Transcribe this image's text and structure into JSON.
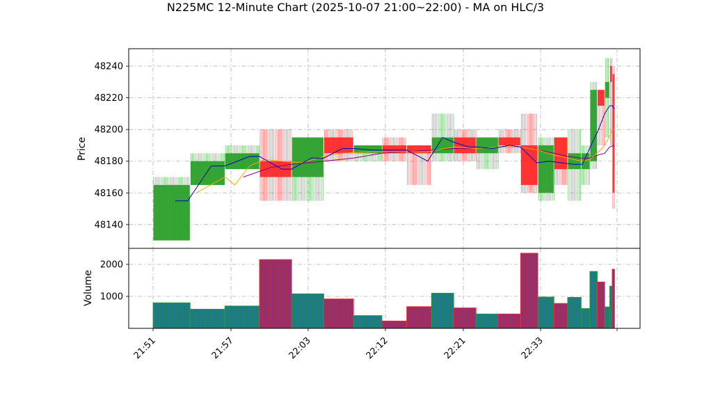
{
  "chart_data": {
    "type": "ohlc-volume",
    "title": "N225MC 12-Minute Chart (2025-10-07 21:00~22:00) - MA on HLC/3",
    "price_axis": {
      "label": "Price",
      "ylim": [
        48125,
        48251
      ],
      "ticks": [
        48140,
        48160,
        48180,
        48200,
        48220,
        48240
      ]
    },
    "volume_axis": {
      "label": "Volume",
      "ylim": [
        0,
        2500
      ],
      "ticks": [
        1000,
        2000
      ]
    },
    "x_tick_labels": [
      "21:51",
      "21:57",
      "22:03",
      "22:12",
      "22:21",
      "22:33"
    ],
    "x_domain": [
      0,
      37.5
    ],
    "grid": true,
    "colors": {
      "up": "#2ca02c",
      "down": "#ff2a2a",
      "ma_fast": "#0000cc",
      "ma_mid": "#ffa500",
      "ma_slow": "#800080",
      "vol_up": "#1f77b4",
      "vol_down": "#8c2d8c"
    },
    "candles": [
      {
        "t0": 0,
        "t1": 3,
        "open": 48130,
        "close": 48165,
        "high": 48170,
        "low": 48130
      },
      {
        "t0": 3,
        "t1": 5.8,
        "open": 48165,
        "close": 48180,
        "high": 48185,
        "low": 48165
      },
      {
        "t0": 5.8,
        "t1": 8.6,
        "open": 48175,
        "close": 48185,
        "high": 48190,
        "low": 48175
      },
      {
        "t0": 8.6,
        "t1": 11.2,
        "open": 48180,
        "close": 48170,
        "high": 48200,
        "low": 48155
      },
      {
        "t0": 11.2,
        "t1": 13.8,
        "open": 48170,
        "close": 48195,
        "high": 48195,
        "low": 48155
      },
      {
        "t0": 13.8,
        "t1": 16.2,
        "open": 48195,
        "close": 48185,
        "high": 48200,
        "low": 48180
      },
      {
        "t0": 16.2,
        "t1": 18.5,
        "open": 48185,
        "close": 48190,
        "high": 48190,
        "low": 48180
      },
      {
        "t0": 18.5,
        "t1": 20.5,
        "open": 48190,
        "close": 48185,
        "high": 48195,
        "low": 48180
      },
      {
        "t0": 20.5,
        "t1": 22.5,
        "open": 48190,
        "close": 48185,
        "high": 48190,
        "low": 48165
      },
      {
        "t0": 22.5,
        "t1": 24.3,
        "open": 48185,
        "close": 48195,
        "high": 48210,
        "low": 48180
      },
      {
        "t0": 24.3,
        "t1": 26.1,
        "open": 48195,
        "close": 48185,
        "high": 48200,
        "low": 48180
      },
      {
        "t0": 26.1,
        "t1": 27.9,
        "open": 48185,
        "close": 48195,
        "high": 48195,
        "low": 48175
      },
      {
        "t0": 27.9,
        "t1": 29.7,
        "open": 48195,
        "close": 48190,
        "high": 48200,
        "low": 48185
      },
      {
        "t0": 29.7,
        "t1": 31.1,
        "open": 48190,
        "close": 48165,
        "high": 48210,
        "low": 48160
      },
      {
        "t0": 31.1,
        "t1": 32.4,
        "open": 48160,
        "close": 48190,
        "high": 48195,
        "low": 48155
      },
      {
        "t0": 32.4,
        "t1": 33.5,
        "open": 48195,
        "close": 48175,
        "high": 48195,
        "low": 48165
      },
      {
        "t0": 33.5,
        "t1": 34.6,
        "open": 48175,
        "close": 48185,
        "high": 48200,
        "low": 48155
      },
      {
        "t0": 34.6,
        "t1": 35.3,
        "open": 48175,
        "close": 48185,
        "high": 48190,
        "low": 48165
      },
      {
        "t0": 35.3,
        "t1": 35.9,
        "open": 48180,
        "close": 48225,
        "high": 48230,
        "low": 48175
      },
      {
        "t0": 35.9,
        "t1": 36.5,
        "open": 48225,
        "close": 48215,
        "high": 48225,
        "low": 48190
      },
      {
        "t0": 36.5,
        "t1": 36.9,
        "open": 48220,
        "close": 48230,
        "high": 48245,
        "low": 48195
      },
      {
        "t0": 36.9,
        "t1": 37.1,
        "open": 48240,
        "close": 48230,
        "high": 48245,
        "low": 48190
      },
      {
        "t0": 37.1,
        "t1": 37.3,
        "open": 48235,
        "close": 48160,
        "high": 48240,
        "low": 48150
      }
    ],
    "volumes": [
      {
        "t0": 0,
        "t1": 3,
        "value": 800,
        "up": true
      },
      {
        "t0": 3,
        "t1": 5.8,
        "value": 600,
        "up": true
      },
      {
        "t0": 5.8,
        "t1": 8.6,
        "value": 700,
        "up": true
      },
      {
        "t0": 8.6,
        "t1": 11.2,
        "value": 2150,
        "up": false
      },
      {
        "t0": 11.2,
        "t1": 13.8,
        "value": 1080,
        "up": true
      },
      {
        "t0": 13.8,
        "t1": 16.2,
        "value": 920,
        "up": false
      },
      {
        "t0": 16.2,
        "t1": 18.5,
        "value": 400,
        "up": true
      },
      {
        "t0": 18.5,
        "t1": 20.5,
        "value": 230,
        "up": false
      },
      {
        "t0": 20.5,
        "t1": 22.5,
        "value": 680,
        "up": false
      },
      {
        "t0": 22.5,
        "t1": 24.3,
        "value": 1100,
        "up": true
      },
      {
        "t0": 24.3,
        "t1": 26.1,
        "value": 640,
        "up": false
      },
      {
        "t0": 26.1,
        "t1": 27.9,
        "value": 450,
        "up": true
      },
      {
        "t0": 27.9,
        "t1": 29.7,
        "value": 450,
        "up": false
      },
      {
        "t0": 29.7,
        "t1": 31.1,
        "value": 2350,
        "up": false
      },
      {
        "t0": 31.1,
        "t1": 32.4,
        "value": 980,
        "up": true
      },
      {
        "t0": 32.4,
        "t1": 33.5,
        "value": 780,
        "up": false
      },
      {
        "t0": 33.5,
        "t1": 34.6,
        "value": 970,
        "up": true
      },
      {
        "t0": 34.6,
        "t1": 35.3,
        "value": 620,
        "up": true
      },
      {
        "t0": 35.3,
        "t1": 35.9,
        "value": 1780,
        "up": true
      },
      {
        "t0": 35.9,
        "t1": 36.5,
        "value": 1450,
        "up": false
      },
      {
        "t0": 36.5,
        "t1": 36.9,
        "value": 670,
        "up": true
      },
      {
        "t0": 36.9,
        "t1": 37.1,
        "value": 1320,
        "up": true
      },
      {
        "t0": 37.1,
        "t1": 37.3,
        "value": 1850,
        "up": false
      }
    ],
    "ma_fast": [
      [
        1.8,
        48155
      ],
      [
        2.8,
        48155
      ],
      [
        4.7,
        48177
      ],
      [
        5.8,
        48177
      ],
      [
        7.8,
        48183
      ],
      [
        8.6,
        48183
      ],
      [
        10.4,
        48175
      ],
      [
        11.2,
        48175
      ],
      [
        12.8,
        48182
      ],
      [
        13.8,
        48182
      ],
      [
        15.3,
        48188
      ],
      [
        16.2,
        48188
      ],
      [
        17.7,
        48187
      ],
      [
        18.5,
        48187
      ],
      [
        19.9,
        48187
      ],
      [
        20.5,
        48187
      ],
      [
        22.2,
        48180
      ],
      [
        23.4,
        48195
      ],
      [
        24.3,
        48192
      ],
      [
        25.5,
        48189
      ],
      [
        26.1,
        48189
      ],
      [
        27.4,
        48188
      ],
      [
        28.8,
        48190
      ],
      [
        29.7,
        48189
      ],
      [
        31,
        48179
      ],
      [
        32,
        48180
      ],
      [
        33,
        48179
      ],
      [
        34,
        48178
      ],
      [
        34.7,
        48178
      ],
      [
        35.4,
        48190
      ],
      [
        36,
        48200
      ],
      [
        36.5,
        48210
      ],
      [
        36.9,
        48215
      ],
      [
        37.1,
        48215
      ],
      [
        37.3,
        48213
      ]
    ],
    "ma_mid": [
      [
        3.5,
        48160
      ],
      [
        5.8,
        48170
      ],
      [
        6.6,
        48165
      ],
      [
        7.8,
        48177
      ],
      [
        9,
        48181
      ],
      [
        10.4,
        48180
      ],
      [
        12,
        48179
      ],
      [
        13.8,
        48183
      ],
      [
        15.3,
        48185
      ],
      [
        17.7,
        48186
      ],
      [
        20.5,
        48186
      ],
      [
        22.2,
        48186
      ],
      [
        24.3,
        48189
      ],
      [
        26.1,
        48188
      ],
      [
        27.9,
        48189
      ],
      [
        29.7,
        48189
      ],
      [
        31.1,
        48187
      ],
      [
        32.4,
        48184
      ],
      [
        33.5,
        48182
      ],
      [
        34.6,
        48180
      ],
      [
        35.3,
        48181
      ],
      [
        36,
        48186
      ],
      [
        36.5,
        48190
      ],
      [
        36.9,
        48196
      ],
      [
        37.1,
        48200
      ],
      [
        37.3,
        48200
      ]
    ],
    "ma_slow": [
      [
        7.3,
        48170
      ],
      [
        9.5,
        48176
      ],
      [
        11.2,
        48178
      ],
      [
        13.8,
        48180
      ],
      [
        16.2,
        48182
      ],
      [
        18.5,
        48185
      ],
      [
        20.5,
        48186
      ],
      [
        22.5,
        48187
      ],
      [
        24.3,
        48188
      ],
      [
        26.1,
        48188
      ],
      [
        27.9,
        48189
      ],
      [
        29.7,
        48189
      ],
      [
        31.1,
        48187
      ],
      [
        32.4,
        48185
      ],
      [
        33.5,
        48183
      ],
      [
        34.6,
        48182
      ],
      [
        35.3,
        48182
      ],
      [
        36,
        48184
      ],
      [
        36.5,
        48185
      ],
      [
        36.9,
        48189
      ],
      [
        37.3,
        48190
      ]
    ]
  }
}
